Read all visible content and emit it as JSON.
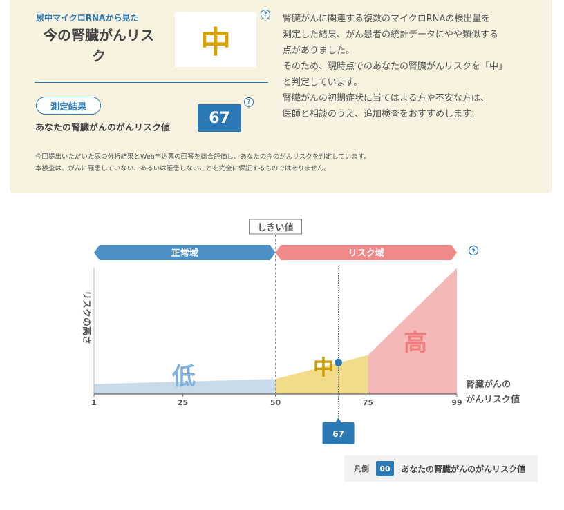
{
  "summary": {
    "subtitle": "尿中マイクロRNAから見た",
    "title_line1": "今の腎臓がんリス",
    "title_line2": "ク",
    "risk_level": "中",
    "help_mark": "?",
    "result_badge": "測定結果",
    "score_label": "あなたの腎臓がんのがんリスク値",
    "score_value": "67"
  },
  "description": [
    "腎臓がんに関連する複数のマイクロRNAの検出量を",
    "測定した結果、がん患者の統計データにやや類似する",
    "点がありました。",
    "そのため、現時点でのあなたの腎臓がんリスクを「中」",
    "と判定しています。",
    "腎臓がんの初期症状に当てはまる方や不安な方は、",
    "医師と相談のうえ、追加検査をおすすめします。"
  ],
  "notes": [
    "今回提出いただいた尿の分析結果とWeb申込票の回答を総合評価し、あなたの今のがんリスクを判定しています。",
    "本検査は、がんに罹患していない、あるいは罹患しないことを完全に保証するものではありません。"
  ],
  "chart_data": {
    "type": "area",
    "threshold_label": "しきい値",
    "normal_zone_label": "正常域",
    "risk_zone_label": "リスク域",
    "ylabel": "リスクの高さ",
    "xlabel_line1": "腎臓がんの",
    "xlabel_line2": "がんリスク値",
    "x_ticks": [
      "1",
      "25",
      "50",
      "75",
      "99"
    ],
    "xlim": [
      1,
      99
    ],
    "threshold": 50,
    "bands": [
      {
        "name": "低",
        "from": 1,
        "to": 50,
        "color": "#c9dbe9"
      },
      {
        "name": "中",
        "from": 50,
        "to": 75,
        "color": "#f2dc8c"
      },
      {
        "name": "高",
        "from": 75,
        "to": 99,
        "color": "#f4b8b9"
      }
    ],
    "band_label_colors": {
      "低": "#7fb0da",
      "中": "#c99b00",
      "高": "#ef7d7d"
    },
    "curve_x": [
      1,
      50,
      75,
      99
    ],
    "curve_y": [
      0.08,
      0.12,
      0.31,
      1.0
    ],
    "marker_value": 67,
    "marker_label": "67",
    "normal_color": "#4c8fc4",
    "risk_color": "#f08a8a",
    "accent": "#2a79b5"
  },
  "legend": {
    "title": "凡例",
    "sample": "00",
    "text": "あなたの腎臓がんのがんリスク値"
  }
}
